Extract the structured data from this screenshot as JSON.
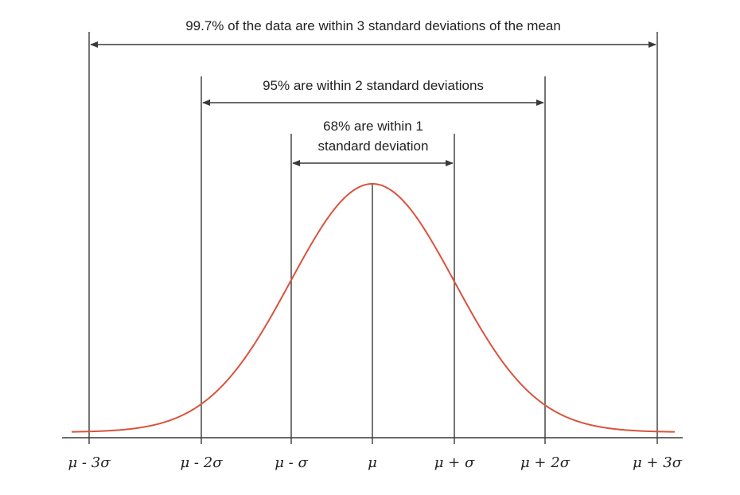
{
  "annotations": {
    "range_3sd": "99.7% of the data are within 3 standard deviations of the mean",
    "range_2sd": "95% are within 2 standard deviations",
    "range_1sd_line1": "68% are within 1",
    "range_1sd_line2": "standard deviation"
  },
  "axis": {
    "ticks": [
      "μ - 3σ",
      "μ - 2σ",
      "μ - σ",
      "μ",
      "μ + σ",
      "μ + 2σ",
      "μ + 3σ"
    ]
  },
  "colors": {
    "curve": "#d9533c",
    "lines": "#3a3a3a",
    "text": "#222222"
  }
}
